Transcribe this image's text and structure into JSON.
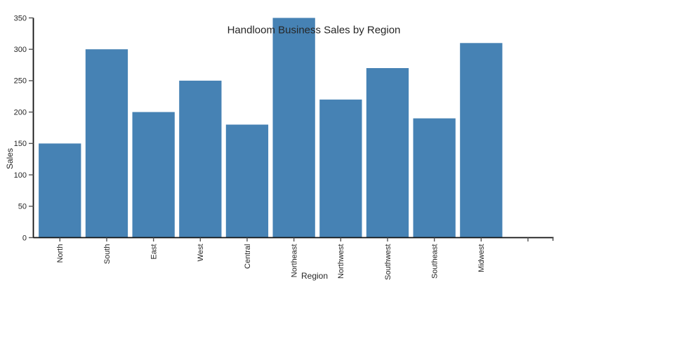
{
  "chart_data": {
    "type": "bar",
    "title": "Handloom Business Sales by Region",
    "xlabel": "Region",
    "ylabel": "Sales",
    "categories": [
      "North",
      "South",
      "East",
      "West",
      "Central",
      "Northeast",
      "Northwest",
      "Southwest",
      "Southeast",
      "Midwest"
    ],
    "values": [
      150,
      300,
      200,
      250,
      180,
      350,
      220,
      270,
      190,
      310
    ],
    "ylim": [
      0,
      350
    ],
    "yticks": [
      0,
      50,
      100,
      150,
      200,
      250,
      300,
      350
    ],
    "xtick_label_rotation_deg": 90,
    "extra_unlabeled_xticks": 1,
    "grid": false,
    "legend": "none",
    "bar_color": "#4682b4",
    "axis_color": "#111111",
    "tick_color": "#555555",
    "text_color": "#262626",
    "background_color": "#ffffff"
  }
}
